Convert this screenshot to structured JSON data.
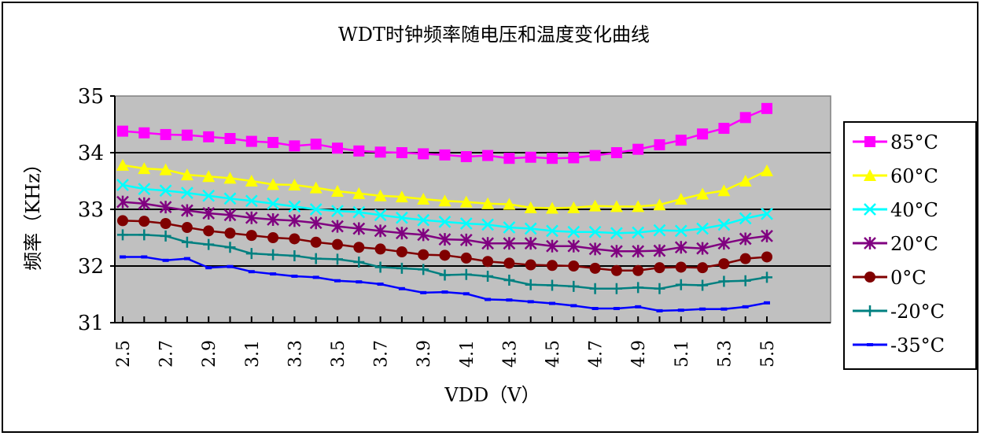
{
  "colors": {
    "plot_bg": "#c0c0c0",
    "grid": "#000000",
    "series": [
      "#ff00ff",
      "#ffff00",
      "#00ffff",
      "#800080",
      "#800000",
      "#008080",
      "#0000ff"
    ]
  },
  "chart_data": {
    "type": "line",
    "title": "WDT时钟频率随电压和温度变化曲线",
    "xlabel": "VDD（V）",
    "ylabel": "频率（KHz）",
    "ylim": [
      31,
      35
    ],
    "yticks": [
      31,
      32,
      33,
      34,
      35
    ],
    "grid": "horizontal",
    "legend": "right",
    "xtick_labels": [
      "2.5",
      "2.7",
      "2.9",
      "3.1",
      "3.3",
      "3.5",
      "3.7",
      "3.9",
      "4.1",
      "4.3",
      "4.5",
      "4.7",
      "4.9",
      "5.1",
      "5.3",
      "5.5"
    ],
    "x": [
      2.5,
      2.6,
      2.7,
      2.8,
      2.9,
      3.0,
      3.1,
      3.2,
      3.3,
      3.4,
      3.5,
      3.6,
      3.7,
      3.8,
      3.9,
      4.0,
      4.1,
      4.2,
      4.3,
      4.4,
      4.5,
      4.6,
      4.7,
      4.8,
      4.9,
      5.0,
      5.1,
      5.2,
      5.3,
      5.4,
      5.5
    ],
    "series": [
      {
        "name": "85°C",
        "marker": "square",
        "values": [
          34.38,
          34.35,
          34.32,
          34.31,
          34.28,
          34.25,
          34.2,
          34.18,
          34.12,
          34.15,
          34.08,
          34.03,
          34.01,
          34.0,
          33.98,
          33.96,
          33.93,
          33.95,
          33.9,
          33.92,
          33.9,
          33.91,
          33.95,
          34.0,
          34.06,
          34.14,
          34.22,
          34.33,
          34.43,
          34.62,
          34.78
        ]
      },
      {
        "name": "60°C",
        "marker": "triangle",
        "values": [
          33.78,
          33.72,
          33.7,
          33.61,
          33.58,
          33.55,
          33.5,
          33.44,
          33.43,
          33.38,
          33.32,
          33.28,
          33.24,
          33.22,
          33.18,
          33.15,
          33.13,
          33.1,
          33.09,
          33.03,
          33.02,
          33.03,
          33.06,
          33.05,
          33.05,
          33.08,
          33.18,
          33.27,
          33.33,
          33.5,
          33.68
        ]
      },
      {
        "name": "40°C",
        "marker": "x",
        "values": [
          33.43,
          33.36,
          33.33,
          33.29,
          33.24,
          33.19,
          33.15,
          33.1,
          33.05,
          33.0,
          32.97,
          32.95,
          32.9,
          32.85,
          32.81,
          32.78,
          32.75,
          32.73,
          32.68,
          32.66,
          32.62,
          32.6,
          32.6,
          32.58,
          32.59,
          32.63,
          32.62,
          32.66,
          32.73,
          32.84,
          32.92
        ]
      },
      {
        "name": "20°C",
        "marker": "star",
        "values": [
          33.13,
          33.1,
          33.04,
          32.98,
          32.93,
          32.9,
          32.85,
          32.82,
          32.8,
          32.76,
          32.7,
          32.66,
          32.62,
          32.58,
          32.55,
          32.47,
          32.46,
          32.4,
          32.4,
          32.4,
          32.35,
          32.35,
          32.3,
          32.26,
          32.26,
          32.27,
          32.33,
          32.31,
          32.4,
          32.48,
          32.53
        ]
      },
      {
        "name": "0°C",
        "marker": "circle",
        "values": [
          32.8,
          32.79,
          32.75,
          32.68,
          32.62,
          32.58,
          32.54,
          32.5,
          32.48,
          32.42,
          32.38,
          32.33,
          32.3,
          32.25,
          32.2,
          32.19,
          32.14,
          32.08,
          32.05,
          32.02,
          32.01,
          32.0,
          31.96,
          31.92,
          31.92,
          31.97,
          31.98,
          31.97,
          32.04,
          32.13,
          32.16
        ]
      },
      {
        "name": "-20°C",
        "marker": "plus",
        "values": [
          32.55,
          32.55,
          32.53,
          32.42,
          32.38,
          32.33,
          32.22,
          32.2,
          32.18,
          32.13,
          32.12,
          32.07,
          31.98,
          31.96,
          31.94,
          31.84,
          31.85,
          31.82,
          31.75,
          31.67,
          31.66,
          31.64,
          31.6,
          31.6,
          31.62,
          31.6,
          31.67,
          31.66,
          31.73,
          31.74,
          31.8
        ]
      },
      {
        "name": "-35°C",
        "marker": "dash",
        "values": [
          32.16,
          32.16,
          32.1,
          32.13,
          31.97,
          31.99,
          31.9,
          31.86,
          31.82,
          31.8,
          31.74,
          31.72,
          31.68,
          31.6,
          31.53,
          31.54,
          31.51,
          31.41,
          31.4,
          31.37,
          31.34,
          31.3,
          31.25,
          31.25,
          31.28,
          31.21,
          31.22,
          31.24,
          31.24,
          31.28,
          31.35
        ]
      }
    ]
  }
}
